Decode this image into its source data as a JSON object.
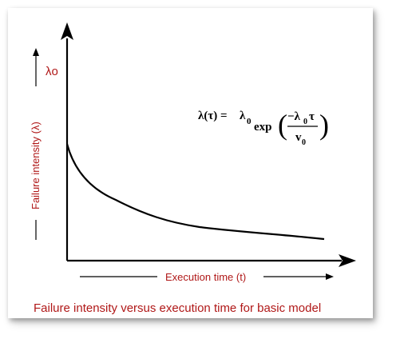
{
  "diagram": {
    "y_axis_label": "Failure intensity (λ)",
    "lambda_zero_label": "λo",
    "x_axis_label": "Execution time (t)",
    "caption": "Failure intensity versus execution time for basic model",
    "formula": {
      "lhs": "λ(τ) =",
      "lambda0": "λ",
      "sub0": "0",
      "exp": "exp",
      "numerator": "−λ",
      "numerator_sub": "0",
      "numerator_tail": "τ",
      "denominator": "v",
      "denominator_sub": "0",
      "open_paren": "(",
      "close_paren": ")"
    },
    "colors": {
      "label": "#b01818",
      "line": "#000000"
    }
  }
}
